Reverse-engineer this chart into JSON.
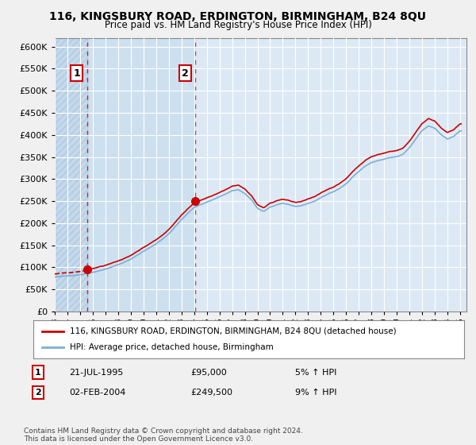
{
  "title": "116, KINGSBURY ROAD, ERDINGTON, BIRMINGHAM, B24 8QU",
  "subtitle": "Price paid vs. HM Land Registry's House Price Index (HPI)",
  "legend_line1": "116, KINGSBURY ROAD, ERDINGTON, BIRMINGHAM, B24 8QU (detached house)",
  "legend_line2": "HPI: Average price, detached house, Birmingham",
  "annotation1_label": "1",
  "annotation1_date": "21-JUL-1995",
  "annotation1_price": "£95,000",
  "annotation1_hpi": "5% ↑ HPI",
  "annotation2_label": "2",
  "annotation2_date": "02-FEB-2004",
  "annotation2_price": "£249,500",
  "annotation2_hpi": "9% ↑ HPI",
  "footnote": "Contains HM Land Registry data © Crown copyright and database right 2024.\nThis data is licensed under the Open Government Licence v3.0.",
  "price_color": "#cc0000",
  "hpi_color": "#7bafd4",
  "background_color": "#f0f0f0",
  "plot_bg_color": "#dce9f5",
  "grid_color": "#ffffff",
  "hatch_color": "#c5d9ec",
  "ylim": [
    0,
    620000
  ],
  "yticks": [
    0,
    50000,
    100000,
    150000,
    200000,
    250000,
    300000,
    350000,
    400000,
    450000,
    500000,
    550000,
    600000
  ],
  "sale1_year": 1995.55,
  "sale1_price": 95000,
  "sale2_year": 2004.09,
  "sale2_price": 249500,
  "xlim_start": 1993,
  "xlim_end": 2025.5
}
